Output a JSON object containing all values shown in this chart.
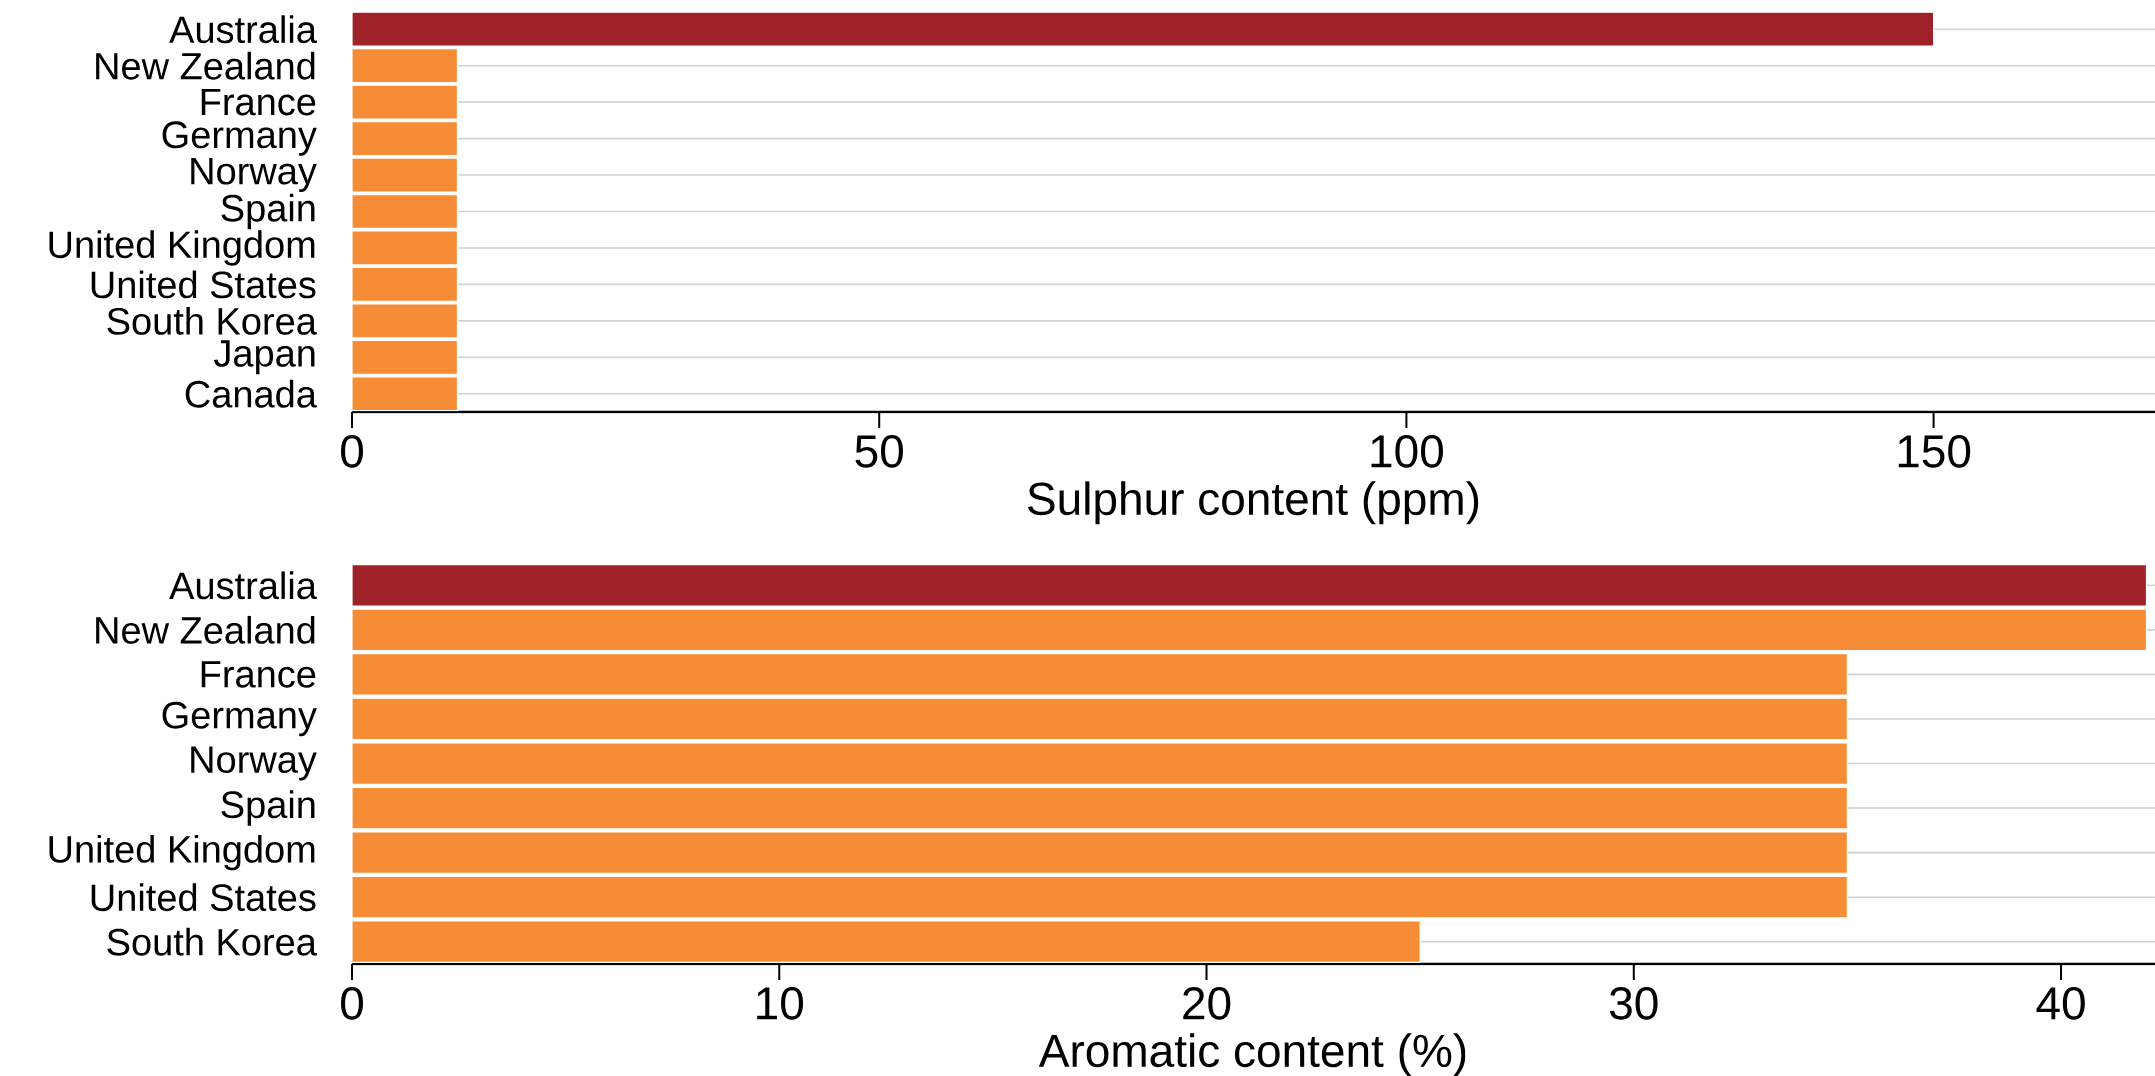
{
  "chart_data": [
    {
      "type": "bar",
      "orientation": "horizontal",
      "categories": [
        "Australia",
        "New Zealand",
        "France",
        "Germany",
        "Norway",
        "Spain",
        "United Kingdom",
        "United States",
        "South Korea",
        "Japan",
        "Canada"
      ],
      "values": [
        150,
        10,
        10,
        10,
        10,
        10,
        10,
        10,
        10,
        10,
        10
      ],
      "colors": [
        "#9e2228",
        "#f68c35",
        "#f68c35",
        "#f68c35",
        "#f68c35",
        "#f68c35",
        "#f68c35",
        "#f68c35",
        "#f68c35",
        "#f68c35",
        "#f68c35"
      ],
      "xlim": [
        0,
        171
      ],
      "xticks": [
        0,
        50,
        100,
        150
      ],
      "xlabel": "Sulphur content (ppm)",
      "grid": "y"
    },
    {
      "type": "bar",
      "orientation": "horizontal",
      "categories": [
        "Australia",
        "New Zealand",
        "France",
        "Germany",
        "Norway",
        "Spain",
        "United Kingdom",
        "United States",
        "South Korea"
      ],
      "values": [
        42,
        42,
        35,
        35,
        35,
        35,
        35,
        35,
        25
      ],
      "colors": [
        "#9e2228",
        "#f68c35",
        "#f68c35",
        "#f68c35",
        "#f68c35",
        "#f68c35",
        "#f68c35",
        "#f68c35",
        "#f68c35"
      ],
      "xlim": [
        0,
        42.2
      ],
      "xticks": [
        0,
        10,
        20,
        30,
        40
      ],
      "xlabel": "Aromatic content (%)",
      "grid": "y"
    }
  ]
}
